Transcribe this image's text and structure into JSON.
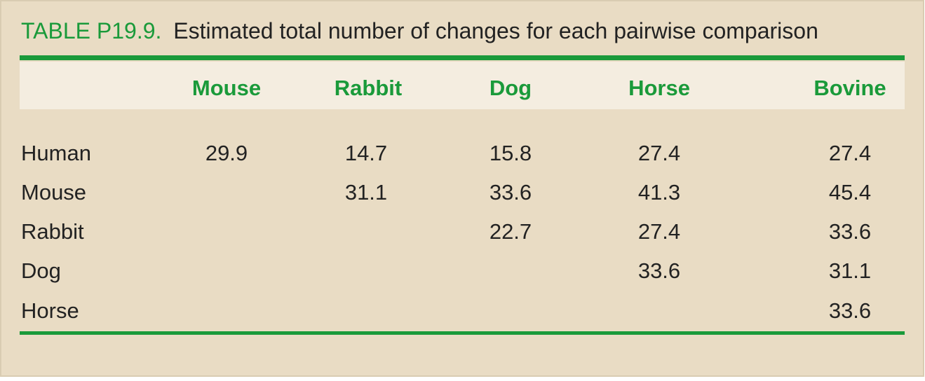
{
  "title": {
    "label": "TABLE P19.9.",
    "caption": "Estimated total number of changes for each pairwise comparison"
  },
  "table": {
    "columns": [
      "Mouse",
      "Rabbit",
      "Dog",
      "Horse",
      "Bovine"
    ],
    "rows": [
      {
        "label": "Human",
        "cells": [
          29.9,
          14.7,
          15.8,
          27.4,
          27.4
        ]
      },
      {
        "label": "Mouse",
        "cells": [
          null,
          31.1,
          33.6,
          41.3,
          45.4
        ]
      },
      {
        "label": "Rabbit",
        "cells": [
          null,
          null,
          22.7,
          27.4,
          33.6
        ]
      },
      {
        "label": "Dog",
        "cells": [
          null,
          null,
          null,
          33.6,
          31.1
        ]
      },
      {
        "label": "Horse",
        "cells": [
          null,
          null,
          null,
          null,
          33.6
        ]
      }
    ]
  }
}
